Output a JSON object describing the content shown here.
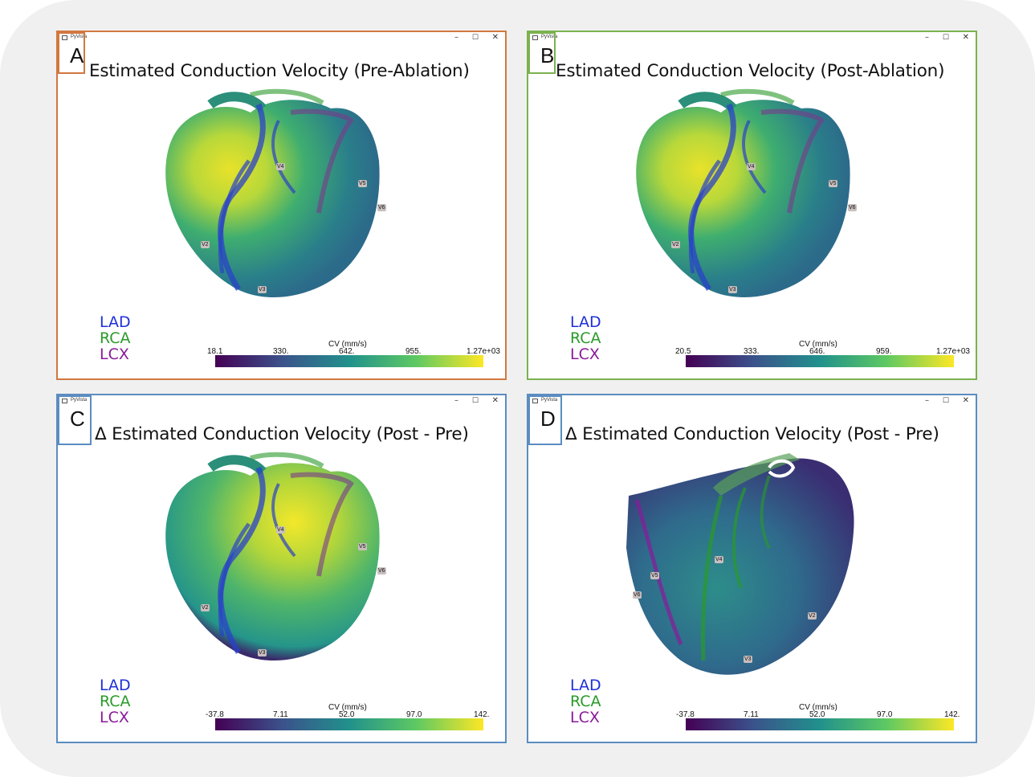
{
  "window": {
    "app_name": "PyVista",
    "minimize_glyph": "–",
    "maximize_glyph": "☐",
    "close_glyph": "✕"
  },
  "colors": {
    "lad": "#1f2fd8",
    "rca": "#2a9a2a",
    "lcx": "#8a1a9a",
    "border_a": "#d2783f",
    "border_b": "#7bb24f",
    "border_cd": "#5b8dc1"
  },
  "legend": {
    "lad": "LAD",
    "rca": "RCA",
    "lcx": "LCX"
  },
  "colorbar_title": "CV (mm/s)",
  "panels": {
    "a": {
      "letter": "A",
      "title": "Estimated Conduction Velocity (Pre-Ablation)",
      "ticks": [
        "18.1",
        "330.",
        "642.",
        "955.",
        "1.27e+03"
      ],
      "leads": [
        "V4",
        "V5",
        "V6",
        "V2",
        "V3"
      ]
    },
    "b": {
      "letter": "B",
      "title": "Estimated Conduction Velocity (Post-Ablation)",
      "ticks": [
        "20.5",
        "333.",
        "646.",
        "959.",
        "1.27e+03"
      ],
      "leads": [
        "V4",
        "V5",
        "V6",
        "V2",
        "V3"
      ]
    },
    "c": {
      "letter": "C",
      "title": "Δ Estimated Conduction Velocity (Post - Pre)",
      "ticks": [
        "-37.8",
        "7.11",
        "52.0",
        "97.0",
        "142."
      ],
      "leads": [
        "V4",
        "V5",
        "V6",
        "V2",
        "V3"
      ]
    },
    "d": {
      "letter": "D",
      "title": "Δ Estimated Conduction Velocity (Post - Pre)",
      "ticks": [
        "-37.8",
        "7.11",
        "52.0",
        "97.0",
        "142."
      ],
      "leads": [
        "V4",
        "V5",
        "V6",
        "V2",
        "V3"
      ]
    }
  }
}
